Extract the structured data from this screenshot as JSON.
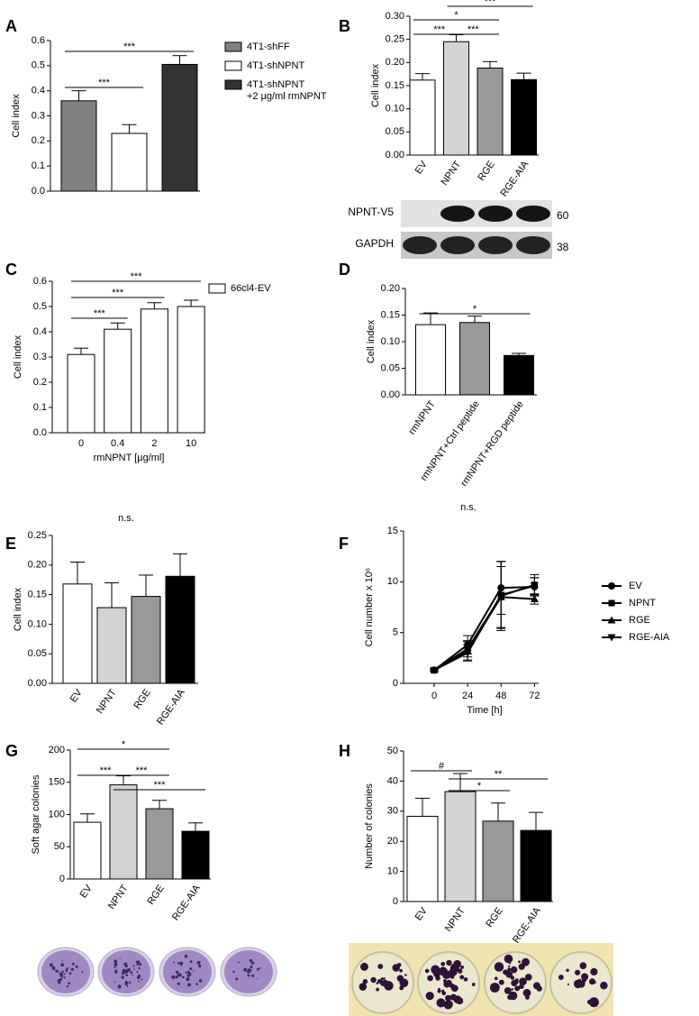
{
  "chart_data": [
    {
      "type": "bar",
      "panel": "A",
      "ylabel": "Cell index",
      "values": [
        0.36,
        0.23,
        0.505
      ],
      "errors": [
        0.04,
        0.035,
        0.035
      ],
      "colors": [
        "#808080",
        "#ffffff",
        "#333333"
      ],
      "legend": [
        "4T1-shFF",
        "4T1-shNPNT",
        "4T1-shNPNT\n+2 µg/ml rmNPNT"
      ],
      "ylim": [
        0,
        0.6
      ],
      "yticks": [
        {
          "value": 0,
          "label": "0.0"
        },
        0.1,
        0.2,
        0.3,
        0.4,
        0.5,
        0.6
      ],
      "annotations": [
        {
          "text": "***",
          "from": 0,
          "to": 2
        },
        {
          "text": "***",
          "from": 0,
          "to": 1
        }
      ]
    },
    {
      "type": "bar",
      "panel": "B",
      "ylabel": "Cell index",
      "categories": [
        "EV",
        "NPNT",
        "RGE",
        "RGE-AIA"
      ],
      "values": [
        0.162,
        0.245,
        0.188,
        0.163
      ],
      "errors": [
        0.014,
        0.015,
        0.014,
        0.014
      ],
      "colors": [
        "#ffffff",
        "#d3d3d3",
        "#999999",
        "#000000"
      ],
      "ylim": [
        0,
        0.3
      ],
      "yticks": [
        {
          "value": 0,
          "label": "0.00"
        },
        0.05,
        {
          "value": 0.1,
          "label": "0.10"
        },
        0.15,
        {
          "value": 0.2,
          "label": "0.20"
        },
        0.25,
        {
          "value": 0.3,
          "label": "0.30"
        }
      ],
      "annotations": [
        {
          "text": "***",
          "from": 1,
          "to": 3
        },
        {
          "text": "*",
          "from": 0,
          "to": 2
        },
        {
          "text": "***",
          "from": 0,
          "to": 1
        },
        {
          "text": "***",
          "from": 1,
          "to": 2
        }
      ],
      "blot": [
        {
          "label": "NPNT-V5",
          "size": "60"
        },
        {
          "label": "GAPDH",
          "size": "38"
        }
      ]
    },
    {
      "type": "bar",
      "panel": "C",
      "ylabel": "Cell index",
      "xlabel": "rmNPNT [µg/ml]",
      "categories": [
        "0",
        "0.4",
        "2",
        "10"
      ],
      "values": [
        0.31,
        0.41,
        0.49,
        0.5
      ],
      "errors": [
        0.025,
        0.025,
        0.025,
        0.025
      ],
      "colors": [
        "#ffffff",
        "#ffffff",
        "#ffffff",
        "#ffffff"
      ],
      "legend": [
        "66cl4-EV"
      ],
      "ylim": [
        0,
        0.6
      ],
      "yticks": [
        {
          "value": 0,
          "label": "0.0"
        },
        0.1,
        0.2,
        0.3,
        0.4,
        0.5,
        0.6
      ],
      "annotations": [
        {
          "text": "***",
          "from": 0,
          "to": 3
        },
        {
          "text": "***",
          "from": 0,
          "to": 2
        },
        {
          "text": "***",
          "from": 0,
          "to": 1
        }
      ]
    },
    {
      "type": "bar",
      "panel": "D",
      "ylabel": "Cell index",
      "categories": [
        "rmNPNT",
        "rmNPNT+Ctrl peptide",
        "rmNPNT+RGD peptide"
      ],
      "values": [
        0.132,
        0.136,
        0.074
      ],
      "errors": [
        0.022,
        0.012,
        0.004
      ],
      "colors": [
        "#ffffff",
        "#999999",
        "#000000"
      ],
      "ylim": [
        0,
        0.2
      ],
      "yticks": [
        {
          "value": 0,
          "label": "0.00"
        },
        0.05,
        {
          "value": 0.1,
          "label": "0.10"
        },
        0.15,
        {
          "value": 0.2,
          "label": "0.20"
        }
      ],
      "annotations": [
        {
          "text": "*",
          "from": 0,
          "to": 2
        }
      ]
    },
    {
      "type": "bar",
      "panel": "E",
      "ylabel": "Cell index",
      "categories": [
        "EV",
        "NPNT",
        "RGE",
        "RGE-AIA"
      ],
      "values": [
        0.168,
        0.128,
        0.147,
        0.181
      ],
      "errors": [
        0.037,
        0.042,
        0.036,
        0.038
      ],
      "colors": [
        "#ffffff",
        "#d3d3d3",
        "#999999",
        "#000000"
      ],
      "ylim": [
        0,
        0.25
      ],
      "yticks": [
        {
          "value": 0,
          "label": "0.00"
        },
        0.05,
        {
          "value": 0.1,
          "label": "0.10"
        },
        0.15,
        {
          "value": 0.2,
          "label": "0.20"
        },
        0.25
      ],
      "annotations": [
        {
          "text": "n.s."
        }
      ]
    },
    {
      "type": "line",
      "panel": "F",
      "ylabel": "Cell number x 10⁶",
      "xlabel": "Time [h]",
      "x": [
        0,
        24,
        48,
        72
      ],
      "xlim": [
        -22,
        75
      ],
      "xticks": [
        0,
        24,
        48,
        72
      ],
      "ylim": [
        0,
        15
      ],
      "yticks": [
        0,
        5,
        10,
        15
      ],
      "series": [
        {
          "name": "EV",
          "marker": "circle",
          "color": "#000000",
          "values": [
            1.3,
            3.8,
            9.4,
            9.5
          ],
          "errors": [
            0.1,
            0.9,
            2.6,
            0.9
          ]
        },
        {
          "name": "NPNT",
          "marker": "square",
          "color": "#000000",
          "values": [
            1.3,
            3.4,
            8.6,
            9.7
          ],
          "errors": [
            0.1,
            0.8,
            3.4,
            1.0
          ]
        },
        {
          "name": "RGE",
          "marker": "triangle",
          "color": "#000000",
          "values": [
            1.3,
            3.2,
            8.5,
            8.3
          ],
          "errors": [
            0.1,
            0.9,
            3.0,
            0.5
          ]
        },
        {
          "name": "RGE-AIA",
          "marker": "triangle-down",
          "color": "#000000",
          "values": [
            1.3,
            3.0,
            8.7,
            9.6
          ],
          "errors": [
            0.1,
            0.8,
            3.3,
            0.8
          ]
        }
      ],
      "annotations": [
        {
          "text": "n.s."
        }
      ]
    },
    {
      "type": "bar",
      "panel": "G",
      "ylabel": "Soft agar colonies",
      "categories": [
        "EV",
        "NPNT",
        "RGE",
        "RGE-AIA"
      ],
      "values": [
        88,
        146,
        109,
        74
      ],
      "errors": [
        13,
        14,
        13,
        13
      ],
      "colors": [
        "#ffffff",
        "#d3d3d3",
        "#999999",
        "#000000"
      ],
      "ylim": [
        0,
        200
      ],
      "yticks": [
        0,
        50,
        100,
        150,
        200
      ],
      "annotations": [
        {
          "text": "*",
          "from": 0,
          "to": 2
        },
        {
          "text": "***",
          "from": 0,
          "to": 1
        },
        {
          "text": "***",
          "from": 1,
          "to": 2
        },
        {
          "text": "***",
          "from": 1,
          "to": 3
        }
      ]
    },
    {
      "type": "bar",
      "panel": "H",
      "ylabel": "Number of colonies",
      "categories": [
        "EV",
        "NPNT",
        "RGE",
        "RGE-AIA"
      ],
      "values": [
        28.3,
        36.5,
        26.7,
        23.6
      ],
      "errors": [
        6,
        6,
        6,
        6
      ],
      "colors": [
        "#ffffff",
        "#d3d3d3",
        "#999999",
        "#000000"
      ],
      "ylim": [
        0,
        50
      ],
      "yticks": [
        0,
        10,
        20,
        30,
        40,
        50
      ],
      "annotations": [
        {
          "text": "#",
          "from": 0,
          "to": 1
        },
        {
          "text": "**",
          "from": 1,
          "to": 3
        },
        {
          "text": "*",
          "from": 1,
          "to": 2
        }
      ]
    }
  ]
}
